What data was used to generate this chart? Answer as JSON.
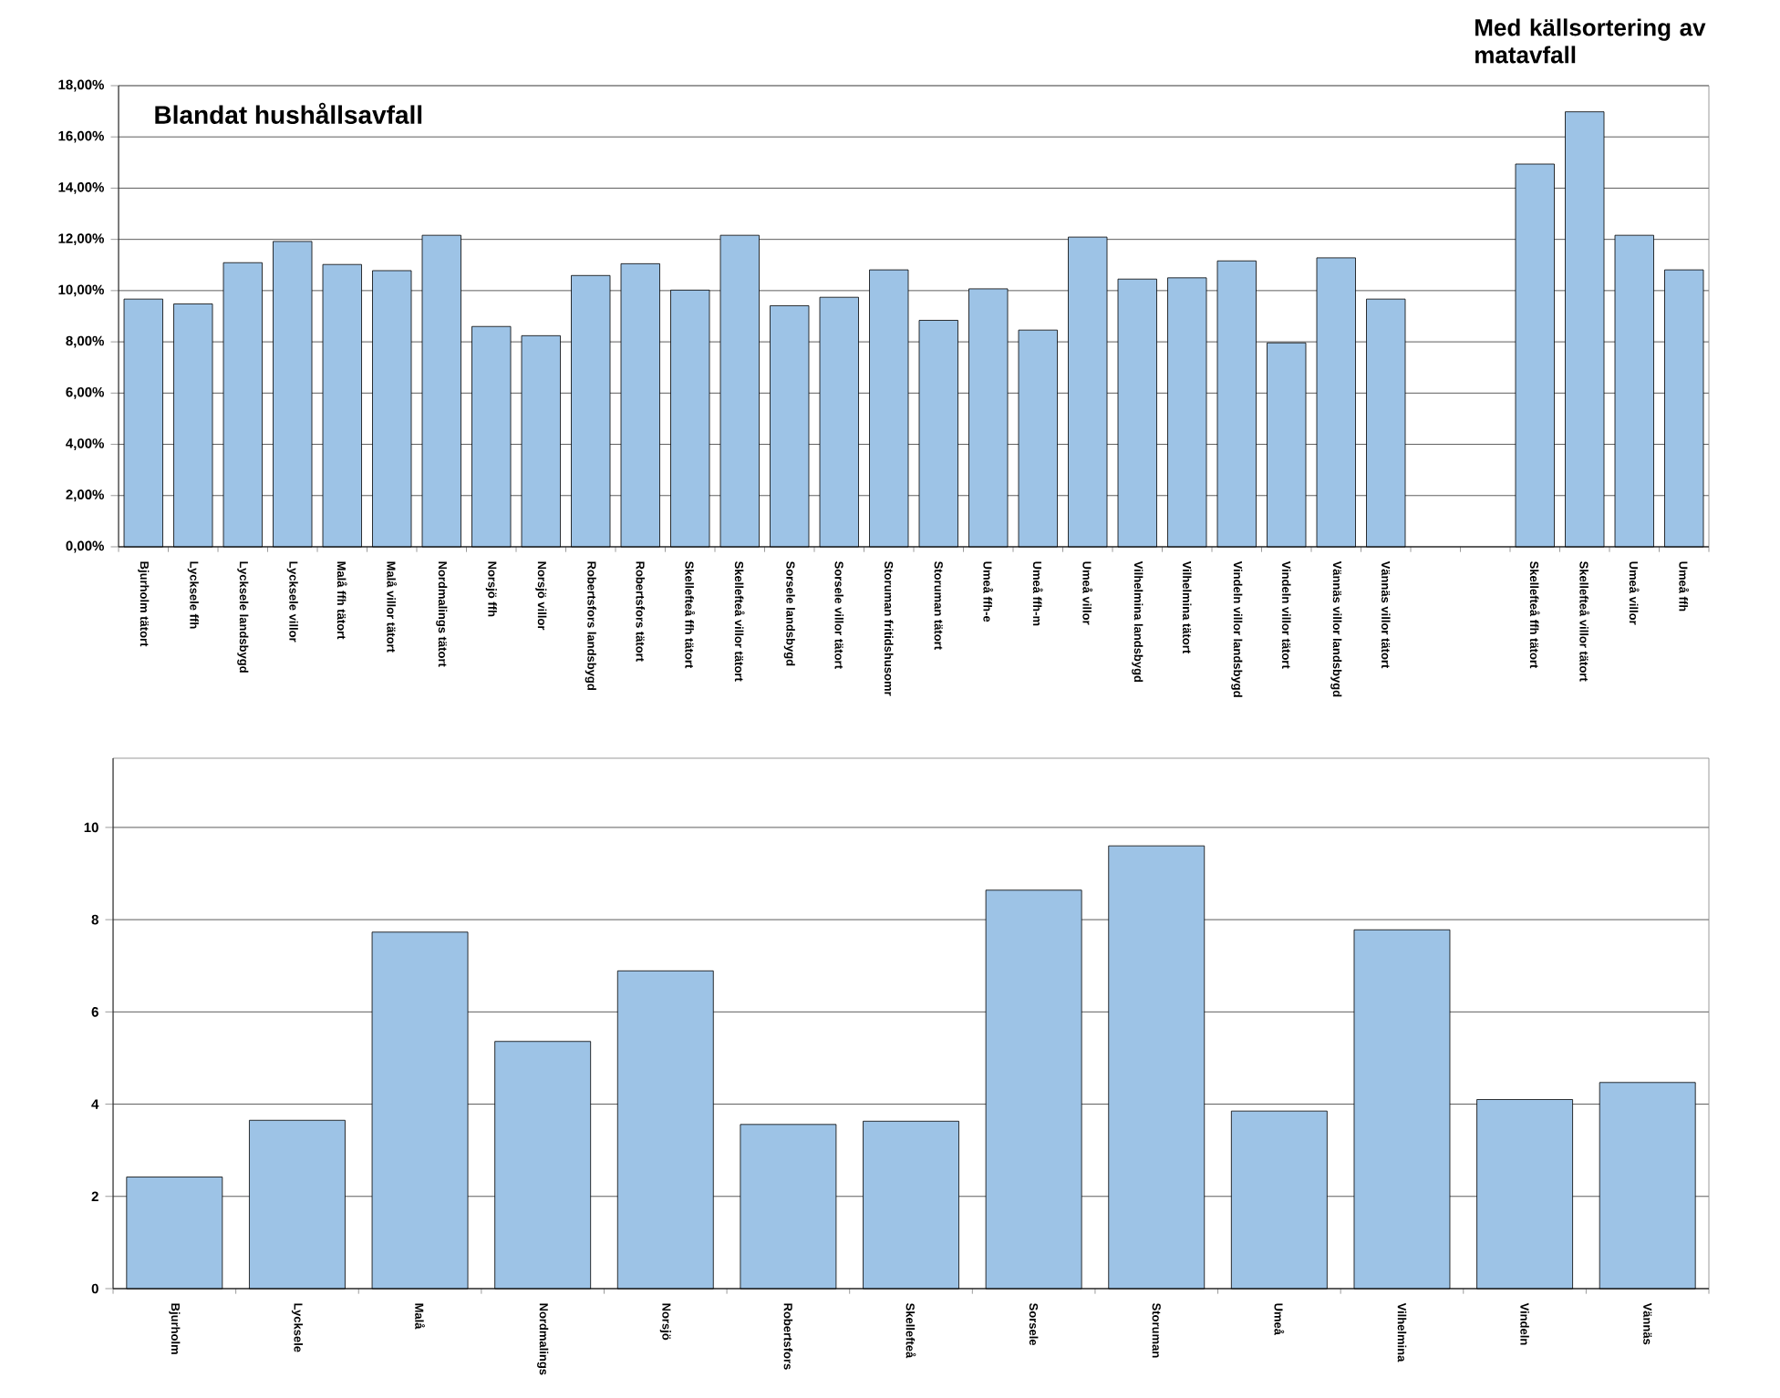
{
  "chart_data": [
    {
      "type": "bar",
      "title": "Blandat hushållsavfall",
      "annotations": [
        "Med källsortering av matavfall"
      ],
      "categories": [
        "Bjurholm tätort",
        "Lycksele ffh",
        "Lycksele landsbygd",
        "Lycksele villor",
        "Malå ffh tätort",
        "Malå villor tätort",
        "Nordmalings tätort",
        "Norsjö ffh",
        "Norsjö villor",
        "Robertsfors landsbygd",
        "Robertsfors tätort",
        "Skellefteå ffh tätort",
        "Skellefteå villor tätort",
        "Sorsele landsbygd",
        "Sorsele villor tätort",
        "Storuman fritidshusomr",
        "Storuman tätort",
        "Umeå ffh-e",
        "Umeå ffh-m",
        "Umeå villor",
        "Vilhelmina landsbygd",
        "Vilhelmina tätort",
        "Vindeln villor landsbygd",
        "Vindeln villor tätort",
        "Vännäs villor landsbygd",
        "Vännäs villor tätort",
        null,
        null,
        "Skellefteå ffh tätort",
        "Skellefteå villor tätort",
        "Umeå villor",
        "Umeå ffh"
      ],
      "values": [
        9.67,
        9.48,
        11.09,
        11.92,
        11.02,
        10.78,
        12.16,
        8.6,
        8.24,
        10.59,
        11.05,
        10.02,
        12.16,
        9.41,
        9.74,
        10.81,
        8.84,
        10.07,
        8.46,
        12.09,
        10.45,
        10.5,
        11.16,
        7.96,
        11.28,
        9.67,
        null,
        null,
        14.94,
        16.98,
        12.16,
        10.81
      ],
      "color": "#9dc3e6",
      "ylim": [
        0,
        18
      ],
      "yticks": [
        {
          "value": 0,
          "label": "0,00%"
        },
        {
          "value": 2,
          "label": "2,00%"
        },
        {
          "value": 4,
          "label": "4,00%"
        },
        {
          "value": 6,
          "label": "6,00%"
        },
        {
          "value": 8,
          "label": "8,00%"
        },
        {
          "value": 10,
          "label": "10,00%"
        },
        {
          "value": 12,
          "label": "12,00%"
        },
        {
          "value": 14,
          "label": "14,00%"
        },
        {
          "value": 16,
          "label": "16,00%"
        },
        {
          "value": 18,
          "label": "18,00%"
        }
      ],
      "grid": "y"
    },
    {
      "type": "bar",
      "categories": [
        "Bjurholm",
        "Lycksele",
        "Malå",
        "Nordmalings",
        "Norsjö",
        "Robertsfors",
        "Skellefteå",
        "Sorsele",
        "Storuman",
        "Umeå",
        "Vilhelmina",
        "Vindeln",
        "Vännäs"
      ],
      "values": [
        2.42,
        3.65,
        7.73,
        5.36,
        6.89,
        3.56,
        3.63,
        8.64,
        9.6,
        3.85,
        7.78,
        4.1,
        4.47
      ],
      "color": "#9dc3e6",
      "ylim": [
        0,
        11.5
      ],
      "yticks": [
        0,
        2,
        4,
        6,
        8,
        10
      ],
      "grid": "y"
    }
  ]
}
